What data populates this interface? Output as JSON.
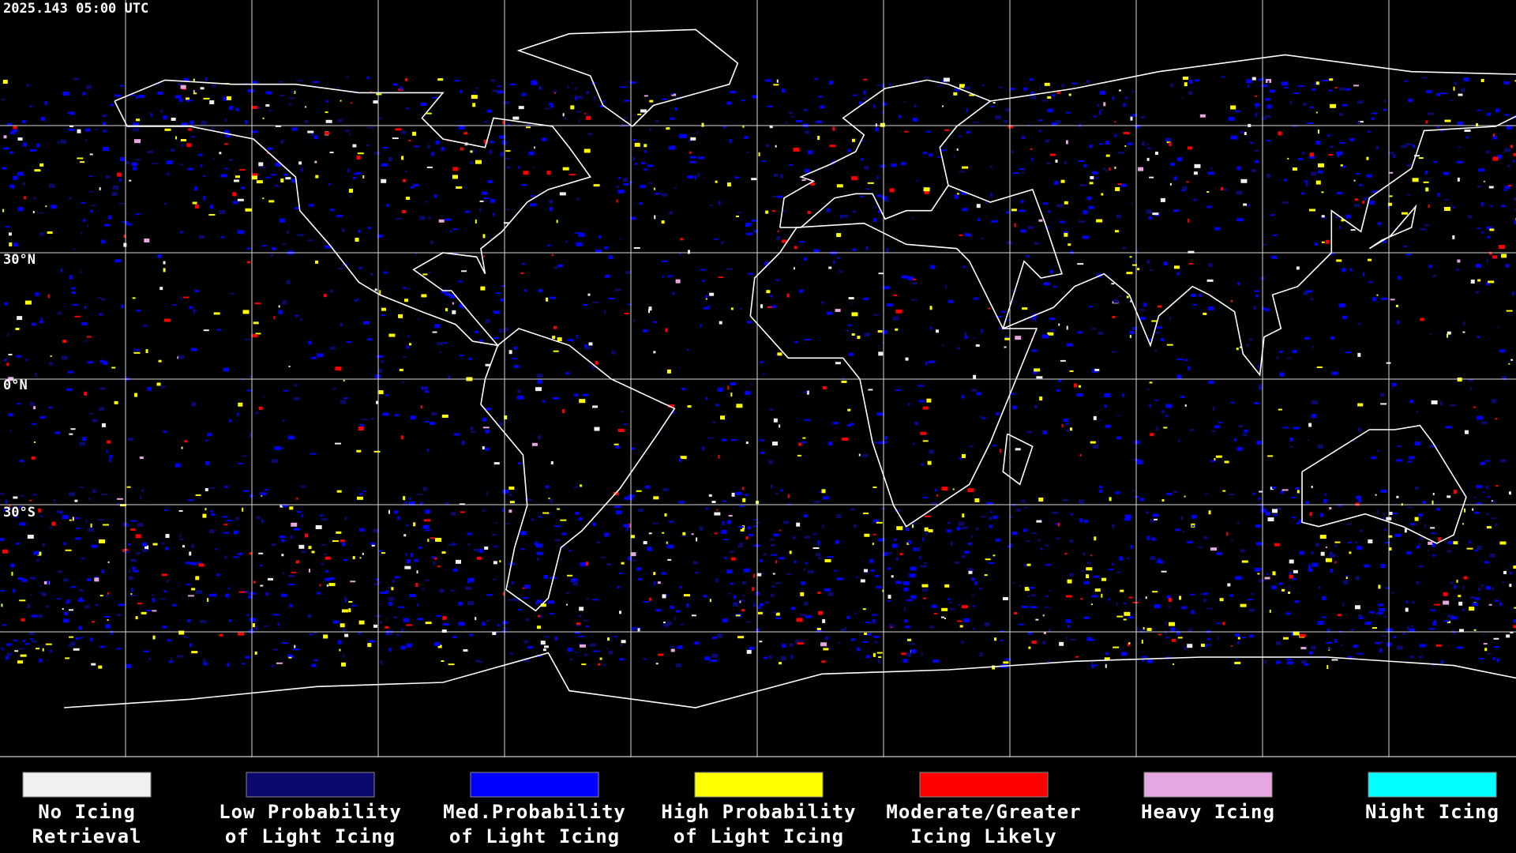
{
  "timestamp": "2025.143 05:00 UTC",
  "latitude_labels": [
    "30°N",
    "0°N",
    "30°S"
  ],
  "legend": [
    {
      "label_lines": [
        "No Icing",
        "Retrieval"
      ],
      "color": "#f0f0f0"
    },
    {
      "label_lines": [
        "Low Probability",
        "of Light Icing"
      ],
      "color": "#0a0a6e"
    },
    {
      "label_lines": [
        "Med.Probability",
        "of Light Icing"
      ],
      "color": "#0000ff"
    },
    {
      "label_lines": [
        "High Probability",
        "of Light Icing"
      ],
      "color": "#ffff00"
    },
    {
      "label_lines": [
        "Moderate/Greater",
        "Icing Likely"
      ],
      "color": "#ff0000"
    },
    {
      "label_lines": [
        "Heavy Icing"
      ],
      "color": "#e6a6e0"
    },
    {
      "label_lines": [
        "Night Icing"
      ],
      "color": "#00ffff"
    }
  ]
}
